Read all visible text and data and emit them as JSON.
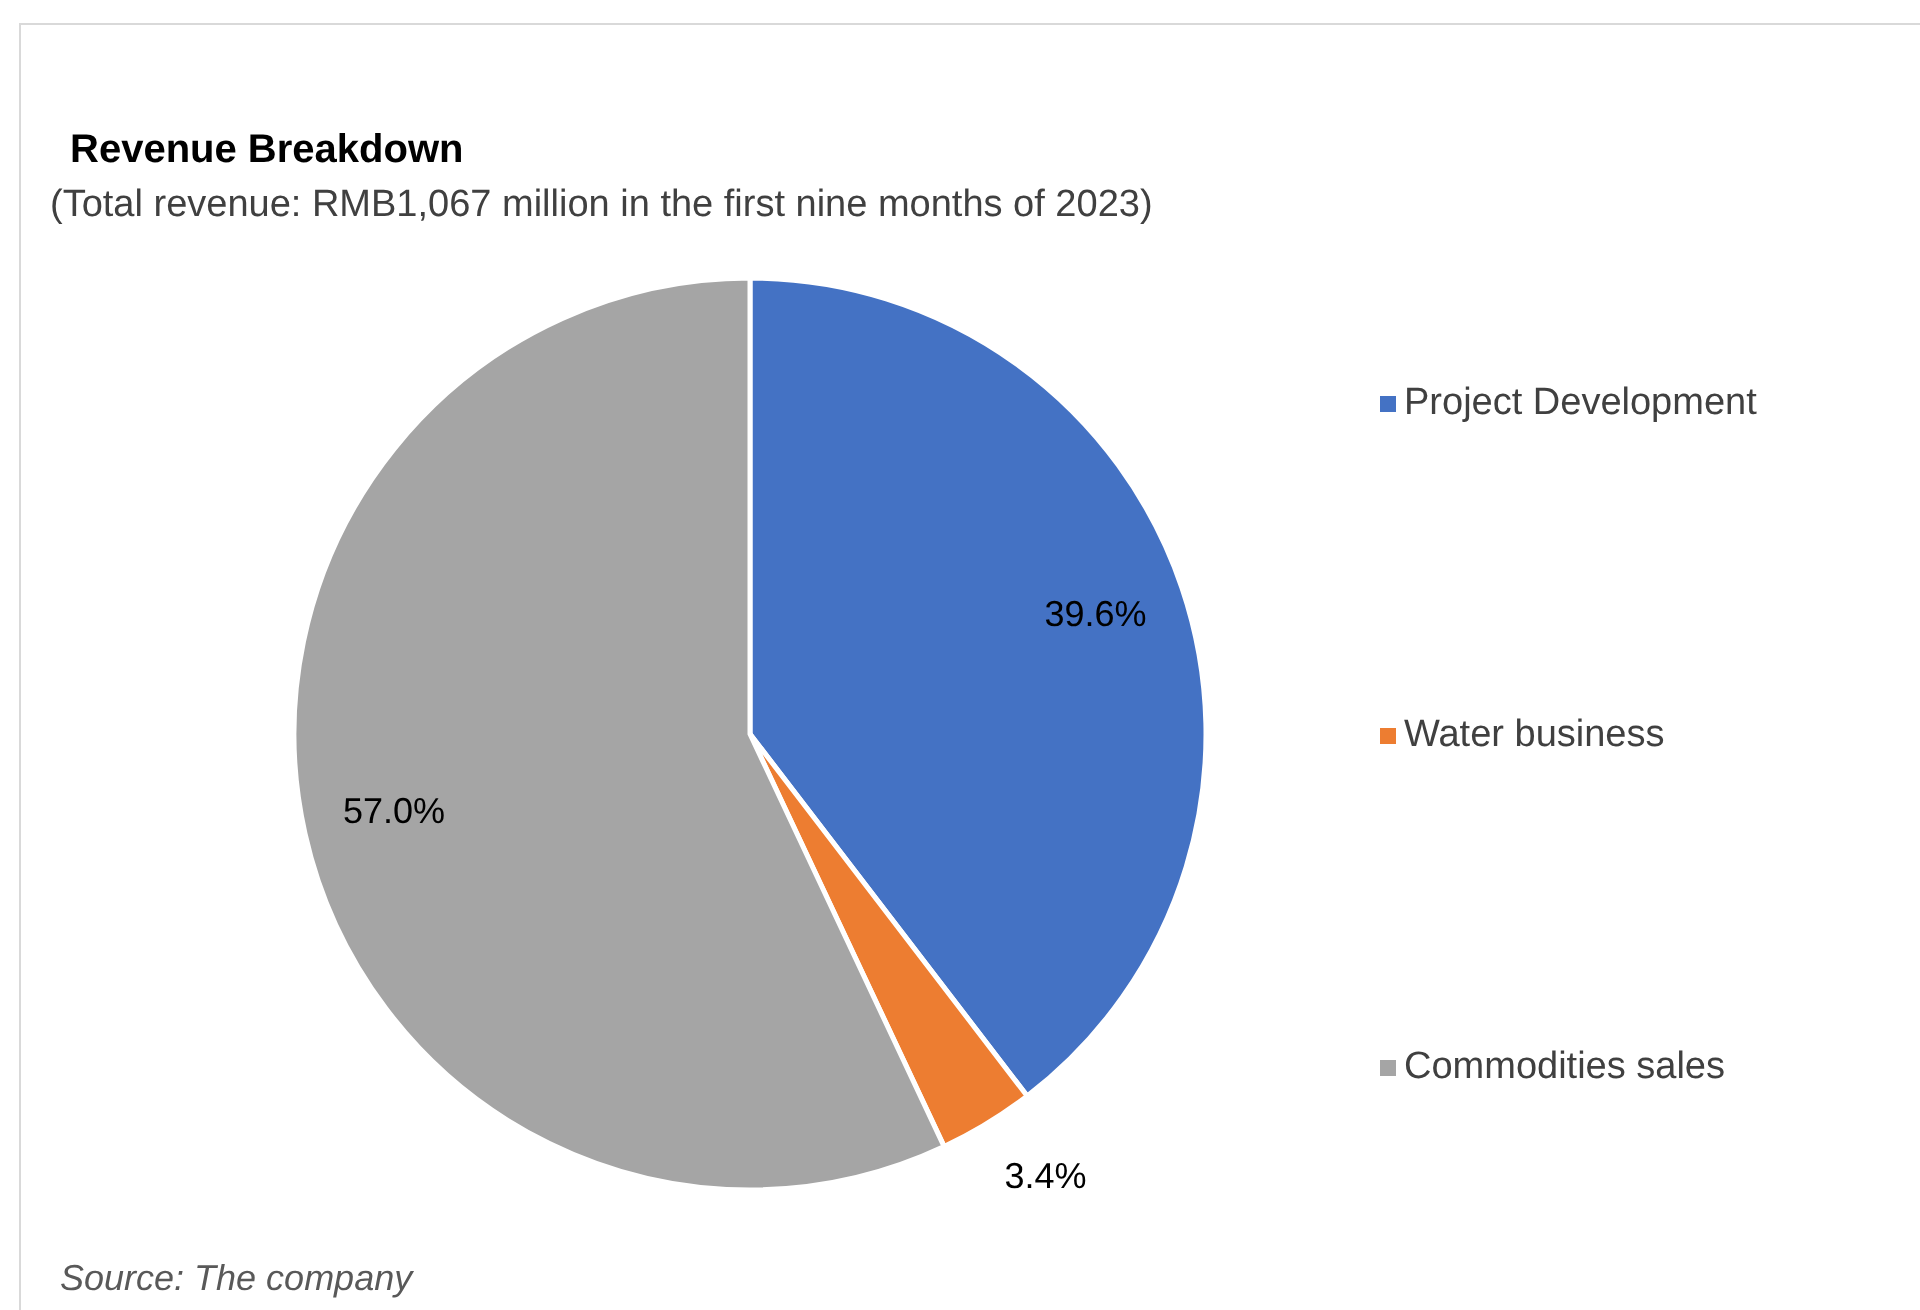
{
  "chart_data": {
    "type": "pie",
    "title": "Revenue Breakdown",
    "subtitle": "(Total revenue: RMB1,067 million in the first nine months of 2023)",
    "categories": [
      "Project Development",
      "Water business",
      "Commodities sales"
    ],
    "values": [
      39.6,
      3.4,
      57.0
    ],
    "colors": [
      "#4472c4",
      "#ed7d31",
      "#a5a5a5"
    ],
    "value_labels": [
      "39.6%",
      "3.4%",
      "57.0%"
    ],
    "legend": "right",
    "annotations": [
      "Source: The company"
    ]
  }
}
